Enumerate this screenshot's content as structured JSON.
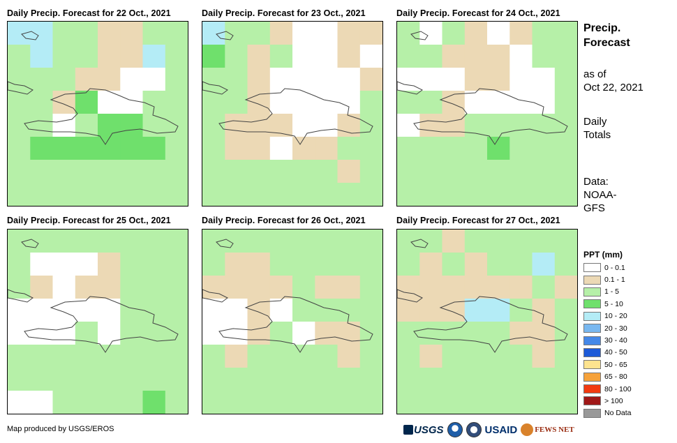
{
  "panels": [
    {
      "title": "Daily Precip. Forecast for 22 Oct., 2021"
    },
    {
      "title": "Daily Precip. Forecast for 23 Oct., 2021"
    },
    {
      "title": "Daily Precip. Forecast for 24 Oct., 2021"
    },
    {
      "title": "Daily Precip. Forecast for 25 Oct., 2021"
    },
    {
      "title": "Daily Precip. Forecast for 26 Oct., 2021"
    },
    {
      "title": "Daily Precip. Forecast for 27 Oct., 2021"
    }
  ],
  "sidebar": {
    "heading_line1": "Precip.",
    "heading_line2": "Forecast",
    "asof_line1": "as of",
    "asof_line2": "Oct 22, 2021",
    "daily_line1": "Daily",
    "daily_line2": "Totals",
    "data_line1": "Data:",
    "data_line2": "NOAA-",
    "data_line3": "GFS"
  },
  "legend": {
    "title": "PPT (mm)",
    "items": [
      {
        "label": "0 - 0.1",
        "color": "#ffffff"
      },
      {
        "label": "0.1 - 1",
        "color": "#ecd9b5"
      },
      {
        "label": "1 - 5",
        "color": "#b6f0a8"
      },
      {
        "label": "5 - 10",
        "color": "#6fe06c"
      },
      {
        "label": "10 - 20",
        "color": "#b4ecf6"
      },
      {
        "label": "20 - 30",
        "color": "#79b8f0"
      },
      {
        "label": "30 - 40",
        "color": "#4488e8"
      },
      {
        "label": "40 - 50",
        "color": "#1c5ad8"
      },
      {
        "label": "50 - 65",
        "color": "#fde38e"
      },
      {
        "label": "65 - 80",
        "color": "#f6a23a"
      },
      {
        "label": "80 - 100",
        "color": "#f23a10"
      },
      {
        "label": "> 100",
        "color": "#a01818"
      },
      {
        "label": "No Data",
        "color": "#999999"
      }
    ]
  },
  "credit": "Map produced by USGS/EROS",
  "logos": {
    "usgs": "USGS",
    "usaid": "USAID",
    "fews": "FEWS NET"
  },
  "map_colors": {
    "c0": "#ffffff",
    "c1": "#ecd9b5",
    "c2": "#b6f0a8",
    "c3": "#6fe06c",
    "c4": "#b4ecf6",
    "c5": "#79b8f0",
    "outline": "#444444"
  }
}
